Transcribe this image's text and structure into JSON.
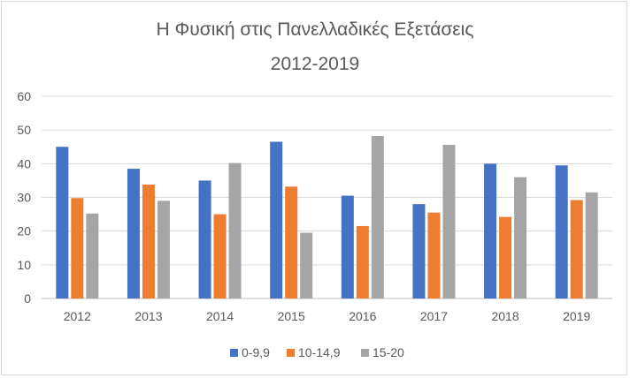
{
  "chart_data": {
    "type": "bar",
    "title": "Η Φυσική στις Πανελλαδικές Εξετάσεις",
    "subtitle": "2012-2019",
    "categories": [
      "2012",
      "2013",
      "2014",
      "2015",
      "2016",
      "2017",
      "2018",
      "2019"
    ],
    "series": [
      {
        "name": "0-9,9",
        "color": "#4472c4",
        "values": [
          45,
          38.5,
          35,
          46.5,
          30.5,
          28,
          40,
          39.5
        ]
      },
      {
        "name": "10-14,9",
        "color": "#ed7d31",
        "values": [
          29.8,
          33.8,
          25,
          33.2,
          21.5,
          25.5,
          24.2,
          29.2
        ]
      },
      {
        "name": "15-20",
        "color": "#a5a5a5",
        "values": [
          25.2,
          29,
          40.2,
          19.5,
          48.2,
          45.6,
          36,
          31.5
        ]
      }
    ],
    "yticks": [
      "0",
      "10",
      "20",
      "30",
      "40",
      "50",
      "60"
    ],
    "ylim": [
      0,
      60
    ],
    "grid": true,
    "legend_position": "bottom"
  }
}
